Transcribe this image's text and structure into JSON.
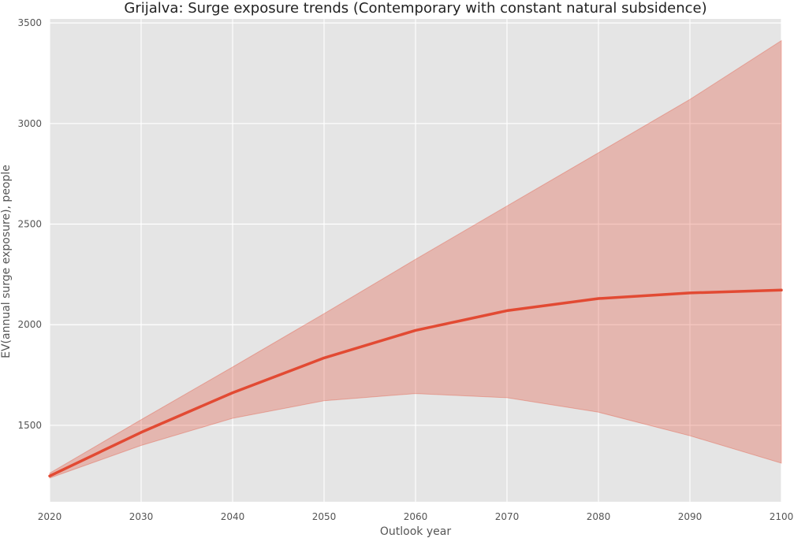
{
  "chart_data": {
    "type": "line",
    "title": "Grijalva: Surge exposure trends (Contemporary with constant natural subsidence)",
    "xlabel": "Outlook year",
    "ylabel": "EV(annual surge exposure), people",
    "xlim": [
      2020,
      2100
    ],
    "ylim": [
      1120,
      3520
    ],
    "x_ticks": [
      2020,
      2030,
      2040,
      2050,
      2060,
      2070,
      2080,
      2090,
      2100
    ],
    "y_ticks": [
      1500,
      2000,
      2500,
      3000,
      3500
    ],
    "grid": true,
    "legend": "none",
    "colors": {
      "background": "#e5e5e5",
      "grid": "#ffffff",
      "line": "#e24a33",
      "band": "#e24a33"
    },
    "x": [
      2020,
      2030,
      2040,
      2050,
      2060,
      2070,
      2080,
      2090,
      2100
    ],
    "series": [
      {
        "values": [
          1248,
          1465,
          1662,
          1835,
          1972,
          2070,
          2130,
          2158,
          2172
        ],
        "lower": [
          1238,
          1400,
          1535,
          1622,
          1658,
          1637,
          1565,
          1448,
          1312
        ],
        "upper": [
          1262,
          1528,
          1790,
          2055,
          2325,
          2590,
          2855,
          3120,
          3412
        ]
      }
    ]
  }
}
